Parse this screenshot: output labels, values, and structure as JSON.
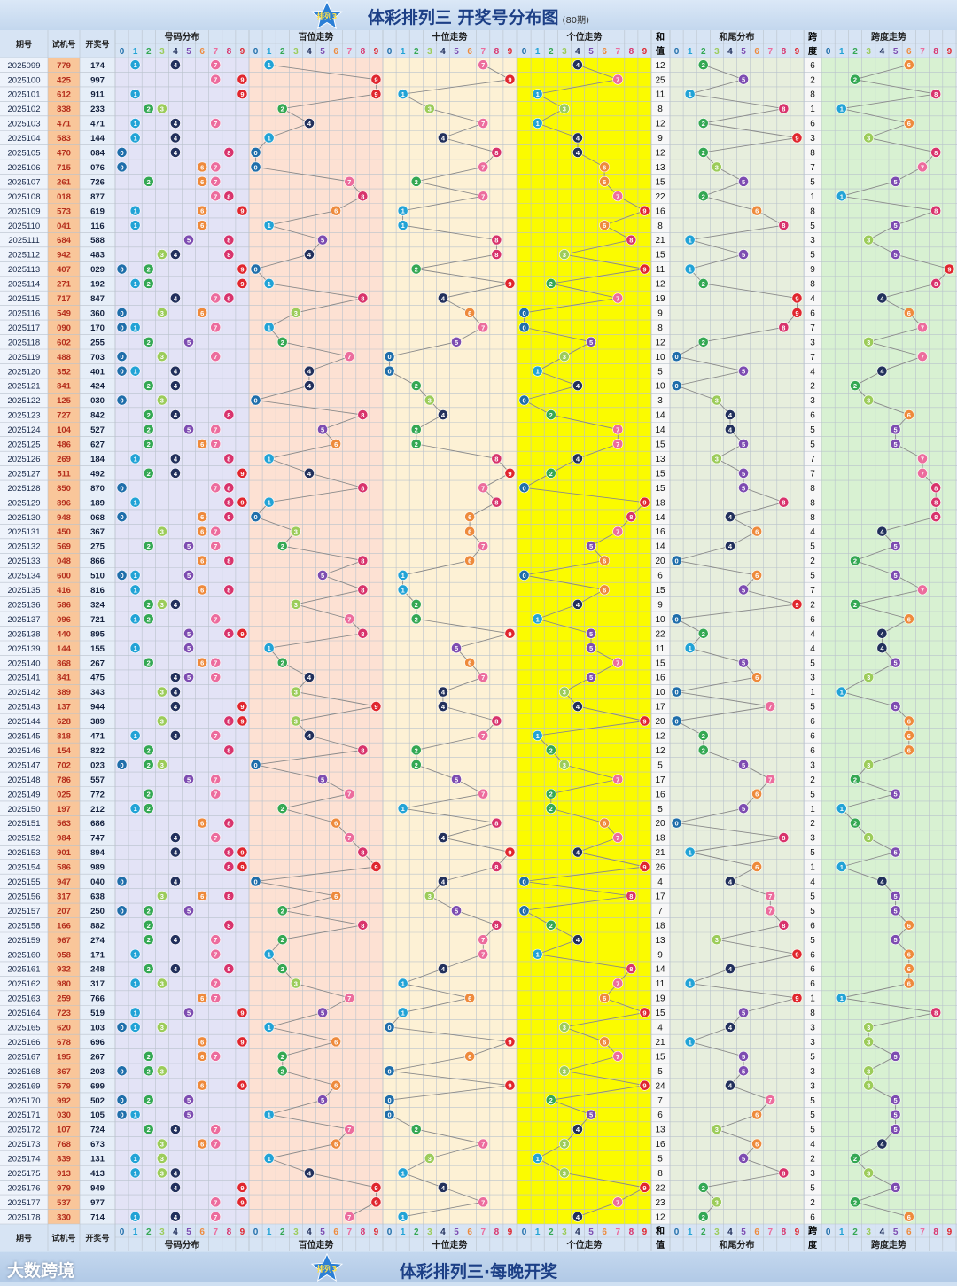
{
  "title": {
    "main": "体彩排列三 开奖号分布图",
    "sub": "(80期)",
    "logo_text": "排列3"
  },
  "footer": {
    "slogan": "体彩排列三·每晚开奖",
    "brand": "大数跨境"
  },
  "headers": {
    "period": "期号",
    "trial": "试机号",
    "draw": "开奖号",
    "dist": "号码分布",
    "hundreds": "百位走势",
    "tens": "十位走势",
    "units": "个位走势",
    "sum": "和值",
    "tail": "和尾分布",
    "span": "跨度",
    "span_trend": "跨度走势",
    "digits": [
      "0",
      "1",
      "2",
      "3",
      "4",
      "5",
      "6",
      "7",
      "8",
      "9"
    ]
  },
  "colors": {
    "0": "#1f6eaa",
    "1": "#22a3d6",
    "2": "#34a853",
    "3": "#9ccc5a",
    "4": "#22305c",
    "5": "#7d4cb1",
    "6": "#ee8a3c",
    "7": "#ec6c9d",
    "8": "#d8336c",
    "9": "#e0262e",
    "panel_dist": "#e3e3f6",
    "panel_hundreds": "#fde1d3",
    "panel_tens": "#fdf1d5",
    "panel_units": "#fbfb00",
    "panel_tail": "#e7eedd",
    "panel_span": "#d8f1d2",
    "trial_cell": "#f9c69a"
  },
  "chart_data": {
    "type": "table",
    "rows": [
      {
        "period": "2025099",
        "trial": "779",
        "draw": "174",
        "sum": "12",
        "span": "6"
      },
      {
        "period": "2025100",
        "trial": "425",
        "draw": "997",
        "sum": "25",
        "span": "2"
      },
      {
        "period": "2025101",
        "trial": "612",
        "draw": "911",
        "sum": "11",
        "span": "8"
      },
      {
        "period": "2025102",
        "trial": "838",
        "draw": "233",
        "sum": "8",
        "span": "1"
      },
      {
        "period": "2025103",
        "trial": "471",
        "draw": "471",
        "sum": "12",
        "span": "6"
      },
      {
        "period": "2025104",
        "trial": "583",
        "draw": "144",
        "sum": "9",
        "span": "3"
      },
      {
        "period": "2025105",
        "trial": "470",
        "draw": "084",
        "sum": "12",
        "span": "8"
      },
      {
        "period": "2025106",
        "trial": "715",
        "draw": "076",
        "sum": "13",
        "span": "7"
      },
      {
        "period": "2025107",
        "trial": "261",
        "draw": "726",
        "sum": "15",
        "span": "5"
      },
      {
        "period": "2025108",
        "trial": "018",
        "draw": "877",
        "sum": "22",
        "span": "1"
      },
      {
        "period": "2025109",
        "trial": "573",
        "draw": "619",
        "sum": "16",
        "span": "8"
      },
      {
        "period": "2025110",
        "trial": "041",
        "draw": "116",
        "sum": "8",
        "span": "5"
      },
      {
        "period": "2025111",
        "trial": "684",
        "draw": "588",
        "sum": "21",
        "span": "3"
      },
      {
        "period": "2025112",
        "trial": "942",
        "draw": "483",
        "sum": "15",
        "span": "5"
      },
      {
        "period": "2025113",
        "trial": "407",
        "draw": "029",
        "sum": "11",
        "span": "9"
      },
      {
        "period": "2025114",
        "trial": "271",
        "draw": "192",
        "sum": "12",
        "span": "8"
      },
      {
        "period": "2025115",
        "trial": "717",
        "draw": "847",
        "sum": "19",
        "span": "4"
      },
      {
        "period": "2025116",
        "trial": "549",
        "draw": "360",
        "sum": "9",
        "span": "6"
      },
      {
        "period": "2025117",
        "trial": "090",
        "draw": "170",
        "sum": "8",
        "span": "7"
      },
      {
        "period": "2025118",
        "trial": "602",
        "draw": "255",
        "sum": "12",
        "span": "3"
      },
      {
        "period": "2025119",
        "trial": "488",
        "draw": "703",
        "sum": "10",
        "span": "7"
      },
      {
        "period": "2025120",
        "trial": "352",
        "draw": "401",
        "sum": "5",
        "span": "4"
      },
      {
        "period": "2025121",
        "trial": "841",
        "draw": "424",
        "sum": "10",
        "span": "2"
      },
      {
        "period": "2025122",
        "trial": "125",
        "draw": "030",
        "sum": "3",
        "span": "3"
      },
      {
        "period": "2025123",
        "trial": "727",
        "draw": "842",
        "sum": "14",
        "span": "6"
      },
      {
        "period": "2025124",
        "trial": "104",
        "draw": "527",
        "sum": "14",
        "span": "5"
      },
      {
        "period": "2025125",
        "trial": "486",
        "draw": "627",
        "sum": "15",
        "span": "5"
      },
      {
        "period": "2025126",
        "trial": "269",
        "draw": "184",
        "sum": "13",
        "span": "7"
      },
      {
        "period": "2025127",
        "trial": "511",
        "draw": "492",
        "sum": "15",
        "span": "7"
      },
      {
        "period": "2025128",
        "trial": "850",
        "draw": "870",
        "sum": "15",
        "span": "8"
      },
      {
        "period": "2025129",
        "trial": "896",
        "draw": "189",
        "sum": "18",
        "span": "8"
      },
      {
        "period": "2025130",
        "trial": "948",
        "draw": "068",
        "sum": "14",
        "span": "8"
      },
      {
        "period": "2025131",
        "trial": "450",
        "draw": "367",
        "sum": "16",
        "span": "4"
      },
      {
        "period": "2025132",
        "trial": "569",
        "draw": "275",
        "sum": "14",
        "span": "5"
      },
      {
        "period": "2025133",
        "trial": "048",
        "draw": "866",
        "sum": "20",
        "span": "2"
      },
      {
        "period": "2025134",
        "trial": "600",
        "draw": "510",
        "sum": "6",
        "span": "5"
      },
      {
        "period": "2025135",
        "trial": "416",
        "draw": "816",
        "sum": "15",
        "span": "7"
      },
      {
        "period": "2025136",
        "trial": "586",
        "draw": "324",
        "sum": "9",
        "span": "2"
      },
      {
        "period": "2025137",
        "trial": "096",
        "draw": "721",
        "sum": "10",
        "span": "6"
      },
      {
        "period": "2025138",
        "trial": "440",
        "draw": "895",
        "sum": "22",
        "span": "4"
      },
      {
        "period": "2025139",
        "trial": "144",
        "draw": "155",
        "sum": "11",
        "span": "4"
      },
      {
        "period": "2025140",
        "trial": "868",
        "draw": "267",
        "sum": "15",
        "span": "5"
      },
      {
        "period": "2025141",
        "trial": "841",
        "draw": "475",
        "sum": "16",
        "span": "3"
      },
      {
        "period": "2025142",
        "trial": "389",
        "draw": "343",
        "sum": "10",
        "span": "1"
      },
      {
        "period": "2025143",
        "trial": "137",
        "draw": "944",
        "sum": "17",
        "span": "5"
      },
      {
        "period": "2025144",
        "trial": "628",
        "draw": "389",
        "sum": "20",
        "span": "6"
      },
      {
        "period": "2025145",
        "trial": "818",
        "draw": "471",
        "sum": "12",
        "span": "6"
      },
      {
        "period": "2025146",
        "trial": "154",
        "draw": "822",
        "sum": "12",
        "span": "6"
      },
      {
        "period": "2025147",
        "trial": "702",
        "draw": "023",
        "sum": "5",
        "span": "3"
      },
      {
        "period": "2025148",
        "trial": "786",
        "draw": "557",
        "sum": "17",
        "span": "2"
      },
      {
        "period": "2025149",
        "trial": "025",
        "draw": "772",
        "sum": "16",
        "span": "5"
      },
      {
        "period": "2025150",
        "trial": "197",
        "draw": "212",
        "sum": "5",
        "span": "1"
      },
      {
        "period": "2025151",
        "trial": "563",
        "draw": "686",
        "sum": "20",
        "span": "2"
      },
      {
        "period": "2025152",
        "trial": "984",
        "draw": "747",
        "sum": "18",
        "span": "3"
      },
      {
        "period": "2025153",
        "trial": "901",
        "draw": "894",
        "sum": "21",
        "span": "5"
      },
      {
        "period": "2025154",
        "trial": "586",
        "draw": "989",
        "sum": "26",
        "span": "1"
      },
      {
        "period": "2025155",
        "trial": "947",
        "draw": "040",
        "sum": "4",
        "span": "4"
      },
      {
        "period": "2025156",
        "trial": "317",
        "draw": "638",
        "sum": "17",
        "span": "5"
      },
      {
        "period": "2025157",
        "trial": "207",
        "draw": "250",
        "sum": "7",
        "span": "5"
      },
      {
        "period": "2025158",
        "trial": "166",
        "draw": "882",
        "sum": "18",
        "span": "6"
      },
      {
        "period": "2025159",
        "trial": "967",
        "draw": "274",
        "sum": "13",
        "span": "5"
      },
      {
        "period": "2025160",
        "trial": "058",
        "draw": "171",
        "sum": "9",
        "span": "6"
      },
      {
        "period": "2025161",
        "trial": "932",
        "draw": "248",
        "sum": "14",
        "span": "6"
      },
      {
        "period": "2025162",
        "trial": "980",
        "draw": "317",
        "sum": "11",
        "span": "6"
      },
      {
        "period": "2025163",
        "trial": "259",
        "draw": "766",
        "sum": "19",
        "span": "1"
      },
      {
        "period": "2025164",
        "trial": "723",
        "draw": "519",
        "sum": "15",
        "span": "8"
      },
      {
        "period": "2025165",
        "trial": "620",
        "draw": "103",
        "sum": "4",
        "span": "3"
      },
      {
        "period": "2025166",
        "trial": "678",
        "draw": "696",
        "sum": "21",
        "span": "3"
      },
      {
        "period": "2025167",
        "trial": "195",
        "draw": "267",
        "sum": "15",
        "span": "5"
      },
      {
        "period": "2025168",
        "trial": "367",
        "draw": "203",
        "sum": "5",
        "span": "3"
      },
      {
        "period": "2025169",
        "trial": "579",
        "draw": "699",
        "sum": "24",
        "span": "3"
      },
      {
        "period": "2025170",
        "trial": "992",
        "draw": "502",
        "sum": "7",
        "span": "5"
      },
      {
        "period": "2025171",
        "trial": "030",
        "draw": "105",
        "sum": "6",
        "span": "5"
      },
      {
        "period": "2025172",
        "trial": "107",
        "draw": "724",
        "sum": "13",
        "span": "5"
      },
      {
        "period": "2025173",
        "trial": "768",
        "draw": "673",
        "sum": "16",
        "span": "4"
      },
      {
        "period": "2025174",
        "trial": "839",
        "draw": "131",
        "sum": "5",
        "span": "2"
      },
      {
        "period": "2025175",
        "trial": "913",
        "draw": "413",
        "sum": "8",
        "span": "3"
      },
      {
        "period": "2025176",
        "trial": "979",
        "draw": "949",
        "sum": "22",
        "span": "5"
      },
      {
        "period": "2025177",
        "trial": "537",
        "draw": "977",
        "sum": "23",
        "span": "2"
      },
      {
        "period": "2025178",
        "trial": "330",
        "draw": "714",
        "sum": "12",
        "span": "6"
      }
    ]
  }
}
